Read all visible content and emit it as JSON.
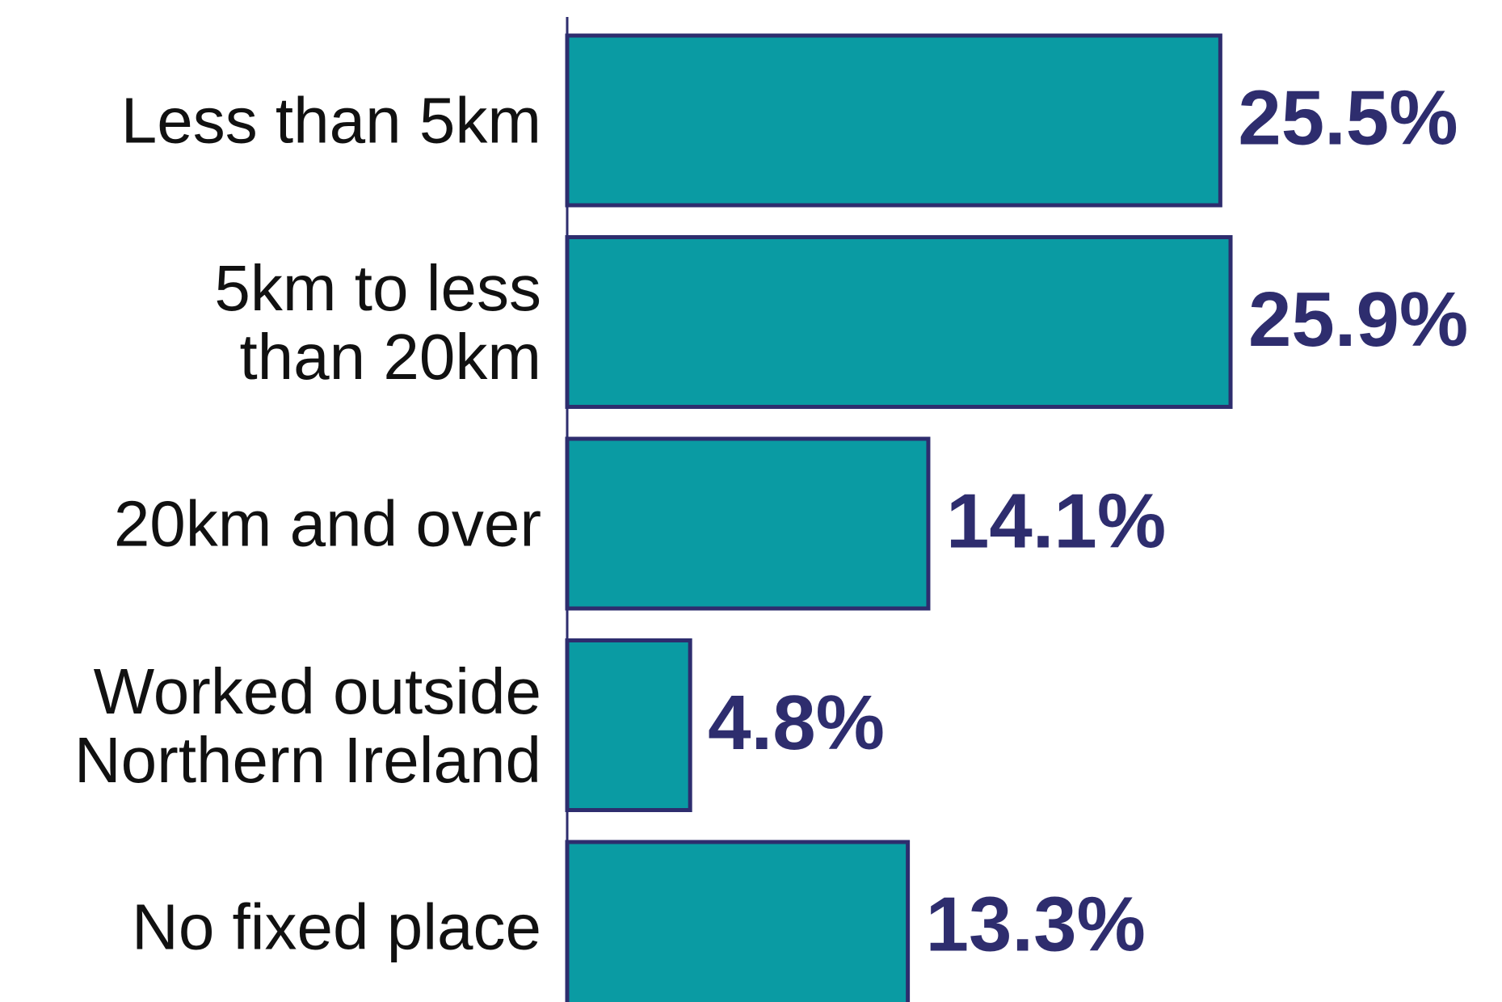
{
  "chart_data": {
    "type": "bar",
    "orientation": "horizontal",
    "categories": [
      "Less than 5km",
      "5km to less\nthan 20km",
      "20km and over",
      "Worked outside\nNorthern Ireland",
      "No fixed place"
    ],
    "values": [
      25.5,
      25.9,
      14.1,
      4.8,
      13.3
    ],
    "value_labels": [
      "25.5%",
      "25.9%",
      "14.1%",
      "4.8%",
      "13.3%"
    ],
    "color": "#0a9ba3",
    "edge_color": "#2e2d6e",
    "label_color": "#2e2d6e"
  }
}
